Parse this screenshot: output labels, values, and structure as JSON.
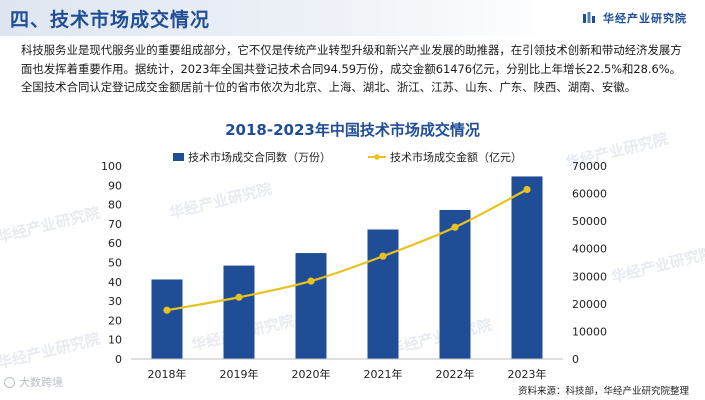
{
  "header": {
    "title": "四、技术市场成交情况",
    "brand": "华经产业研究院"
  },
  "paragraph": "科技服务业是现代服务业的重要组成部分，它不仅是传统产业转型升级和新兴产业发展的助推器，在引领技术创新和带动经济发展方面也发挥着重要作用。据统计，2023年全国共登记技术合同94.59万份，成交金额61476亿元，分别比上年增长22.5%和28.6%。全国技术合同认定登记成交金额居前十位的省市依次为北京、上海、湖北、浙江、江苏、山东、广东、陕西、湖南、安徽。",
  "watermarks": [
    "华经产业研究院",
    "华经产业研究院",
    "华经产业研究院",
    "华经产业研究院",
    "华经产业研究院",
    "华经产业研究院",
    "华经产业研究院"
  ],
  "watermark_logo": "大数跨境",
  "source": "资料来源：科技部，华经产业研究院整理",
  "colors": {
    "bar": "#1f4e96",
    "line": "#e8c21f",
    "title": "#1f4e96"
  },
  "chart_data": {
    "type": "bar",
    "title": "2018-2023年中国技术市场成交情况",
    "categories": [
      "2018年",
      "2019年",
      "2020年",
      "2021年",
      "2022年",
      "2023年"
    ],
    "series": [
      {
        "name": "技术市场成交合同数（万份）",
        "type": "bar",
        "axis": "left",
        "values": [
          41.2,
          48.4,
          54.9,
          67.1,
          77.2,
          94.59
        ]
      },
      {
        "name": "技术市场成交金额（亿元）",
        "type": "line",
        "axis": "right",
        "values": [
          17697,
          22398,
          28252,
          37294,
          47791,
          61476
        ]
      }
    ],
    "yleft": {
      "min": 0,
      "max": 100,
      "ticks": [
        "0",
        "10",
        "20",
        "30",
        "40",
        "50",
        "60",
        "70",
        "80",
        "90",
        "100"
      ]
    },
    "yright": {
      "min": 0,
      "max": 70000,
      "ticks": [
        "0",
        "10000",
        "20000",
        "30000",
        "40000",
        "50000",
        "60000",
        "70000"
      ]
    },
    "legend": "top",
    "grid": false
  }
}
